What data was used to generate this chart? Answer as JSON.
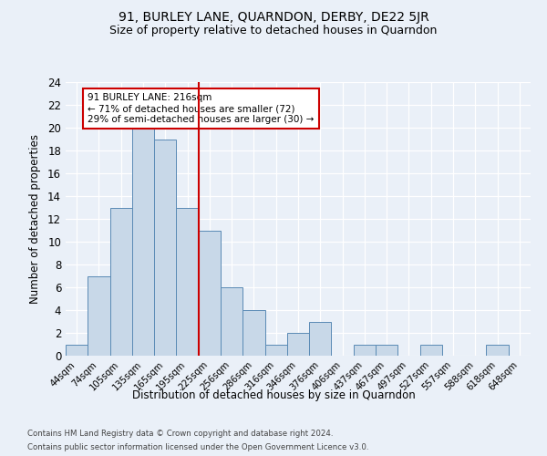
{
  "title": "91, BURLEY LANE, QUARNDON, DERBY, DE22 5JR",
  "subtitle": "Size of property relative to detached houses in Quarndon",
  "xlabel": "Distribution of detached houses by size in Quarndon",
  "ylabel": "Number of detached properties",
  "footnote1": "Contains HM Land Registry data © Crown copyright and database right 2024.",
  "footnote2": "Contains public sector information licensed under the Open Government Licence v3.0.",
  "bin_labels": [
    "44sqm",
    "74sqm",
    "105sqm",
    "135sqm",
    "165sqm",
    "195sqm",
    "225sqm",
    "256sqm",
    "286sqm",
    "316sqm",
    "346sqm",
    "376sqm",
    "406sqm",
    "437sqm",
    "467sqm",
    "497sqm",
    "527sqm",
    "557sqm",
    "588sqm",
    "618sqm",
    "648sqm"
  ],
  "counts": [
    1,
    7,
    13,
    20,
    19,
    13,
    11,
    6,
    4,
    1,
    2,
    3,
    0,
    1,
    1,
    0,
    1,
    0,
    0,
    1,
    0
  ],
  "bar_color": "#c8d8e8",
  "bar_edge_color": "#5a8ab5",
  "vline_x": 5.5,
  "vline_color": "#cc0000",
  "annotation_text": "91 BURLEY LANE: 216sqm\n← 71% of detached houses are smaller (72)\n29% of semi-detached houses are larger (30) →",
  "annotation_box_color": "#ffffff",
  "annotation_box_edge": "#cc0000",
  "annotation_fontsize": 7.5,
  "ylim": [
    0,
    24
  ],
  "yticks": [
    0,
    2,
    4,
    6,
    8,
    10,
    12,
    14,
    16,
    18,
    20,
    22,
    24
  ],
  "bg_color": "#eaf0f8",
  "grid_color": "#ffffff",
  "title_fontsize": 10,
  "subtitle_fontsize": 9,
  "xlabel_fontsize": 8.5,
  "ylabel_fontsize": 8.5
}
